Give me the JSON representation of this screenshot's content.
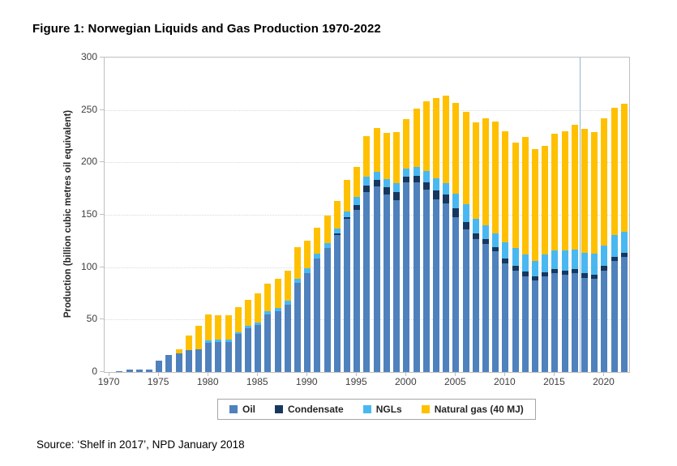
{
  "figure_title": "Figure 1: Norwegian Liquids and Gas Production 1970-2022",
  "source_text": "Source: ‘Shelf in 2017’, NPD January 2018",
  "chart_data": {
    "type": "bar",
    "stacked": true,
    "title": "Figure 1: Norwegian Liquids and Gas Production 1970-2022",
    "xlabel": "",
    "ylabel": "Production (billion cubic metres oil equivalent)",
    "ylim": [
      0,
      300
    ],
    "yticks": [
      0,
      50,
      100,
      150,
      200,
      250,
      300
    ],
    "xticks": [
      1970,
      1975,
      1980,
      1985,
      1990,
      1995,
      2000,
      2005,
      2010,
      2015,
      2020
    ],
    "grid": "horizontal-dotted",
    "grid_color": "#d9d9d9",
    "legend_position": "bottom",
    "categories": [
      1970,
      1971,
      1972,
      1973,
      1974,
      1975,
      1976,
      1977,
      1978,
      1979,
      1980,
      1981,
      1982,
      1983,
      1984,
      1985,
      1986,
      1987,
      1988,
      1989,
      1990,
      1991,
      1992,
      1993,
      1994,
      1995,
      1996,
      1997,
      1998,
      1999,
      2000,
      2001,
      2002,
      2003,
      2004,
      2005,
      2006,
      2007,
      2008,
      2009,
      2010,
      2011,
      2012,
      2013,
      2014,
      2015,
      2016,
      2017,
      2018,
      2019,
      2020,
      2021,
      2022
    ],
    "series": [
      {
        "name": "Oil",
        "color": "#4f81bd",
        "values": [
          0,
          1,
          2,
          2,
          2,
          11,
          16,
          18,
          21,
          22,
          28,
          29,
          29,
          36,
          42,
          45,
          55,
          58,
          64,
          85,
          94,
          108,
          118,
          131,
          146,
          155,
          172,
          177,
          169,
          164,
          181,
          181,
          174,
          165,
          161,
          148,
          136,
          127,
          122,
          115,
          104,
          97,
          91,
          87,
          91,
          94,
          93,
          94,
          90,
          89,
          97,
          106,
          110
        ]
      },
      {
        "name": "Condensate",
        "color": "#17375e",
        "values": [
          0,
          0,
          0,
          0,
          0,
          0,
          0,
          0,
          0,
          0,
          0,
          0,
          0,
          0,
          0,
          0,
          0,
          0,
          0,
          0,
          0,
          0,
          0,
          1,
          2,
          4,
          6,
          6,
          7,
          8,
          5,
          6,
          7,
          8,
          8,
          8,
          7,
          5,
          5,
          4,
          4,
          4,
          5,
          4,
          4,
          4,
          4,
          4,
          4,
          4,
          4,
          4,
          4
        ]
      },
      {
        "name": "NGLs",
        "color": "#49b8f1",
        "values": [
          0,
          0,
          0,
          0,
          0,
          0,
          0,
          0,
          0,
          0,
          2,
          2,
          2,
          2,
          2,
          2,
          3,
          3,
          4,
          4,
          5,
          5,
          5,
          5,
          5,
          8,
          8,
          8,
          8,
          8,
          8,
          9,
          11,
          12,
          11,
          14,
          17,
          14,
          13,
          13,
          16,
          17,
          16,
          15,
          17,
          18,
          19,
          19,
          20,
          20,
          20,
          21,
          20
        ]
      },
      {
        "name": "Natural gas (40 MJ)",
        "color": "#ffc000",
        "values": [
          0,
          0,
          0,
          0,
          0,
          0,
          0,
          4,
          14,
          22,
          25,
          23,
          23,
          24,
          25,
          28,
          26,
          28,
          29,
          30,
          26,
          25,
          26,
          26,
          30,
          29,
          39,
          42,
          44,
          49,
          47,
          55,
          66,
          76,
          84,
          87,
          88,
          92,
          102,
          107,
          106,
          101,
          112,
          107,
          104,
          111,
          114,
          119,
          118,
          116,
          121,
          121,
          122
        ]
      }
    ],
    "annotations": [
      {
        "type": "vline",
        "x": 2017.5,
        "color": "#94b6d2",
        "meaning": "divider between historical data and forecast"
      }
    ]
  },
  "legend": {
    "items": [
      {
        "label": "Oil",
        "color": "#4f81bd"
      },
      {
        "label": "Condensate",
        "color": "#17375e"
      },
      {
        "label": "NGLs",
        "color": "#49b8f1"
      },
      {
        "label": "Natural gas (40 MJ)",
        "color": "#ffc000"
      }
    ]
  },
  "colors": {
    "background": "#ffffff",
    "plot_border": "#bfbfbf",
    "tick_text": "#404040",
    "title_text": "#000000",
    "divider_line": "#94b6d2"
  }
}
